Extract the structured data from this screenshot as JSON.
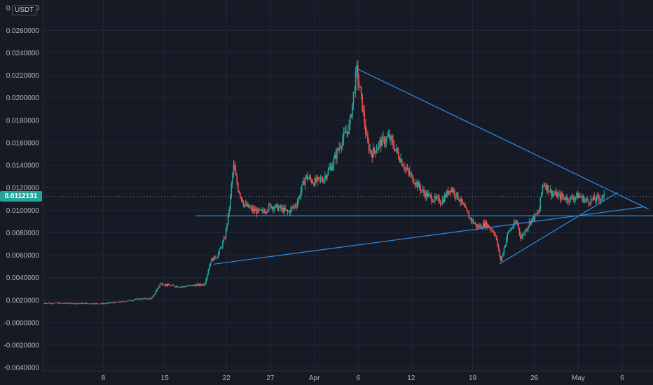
{
  "currency_label": "USDT",
  "last_price_label": "0.0112131",
  "colors": {
    "background": "#161a25",
    "grid": "#232736",
    "up": "#26a69a",
    "down": "#ef5350",
    "trendline": "#2e8de8",
    "price_line": "#7b808d"
  },
  "chart_data": {
    "type": "candlestick",
    "title": "",
    "xlabel": "",
    "ylabel": "",
    "ylim": [
      -0.0043,
      0.0287
    ],
    "y_ticks": [
      "0.0280000",
      "0.0260000",
      "0.0240000",
      "0.0220000",
      "0.0200000",
      "0.0180000",
      "0.0160000",
      "0.0140000",
      "0.0120000",
      "0.0100000",
      "0.0080000",
      "0.0060000",
      "0.0040000",
      "0.0020000",
      "-0.0000000",
      "-0.0020000",
      "-0.0040000"
    ],
    "y_tick_values": [
      0.028,
      0.026,
      0.024,
      0.022,
      0.02,
      0.018,
      0.016,
      0.014,
      0.012,
      0.01,
      0.008,
      0.006,
      0.004,
      0.002,
      0.0,
      -0.002,
      -0.004
    ],
    "x_ticks": [
      "8",
      "15",
      "22",
      "27",
      "Apr",
      "6",
      "12",
      "19",
      "26",
      "May",
      "6"
    ],
    "x_tick_days": [
      8,
      15,
      22,
      27,
      32,
      37,
      43,
      50,
      57,
      62,
      67
    ],
    "x_range_days": [
      1.2,
      70.5
    ],
    "last_price": 0.0112131,
    "price_path": [
      [
        1.2,
        0.00175
      ],
      [
        5,
        0.00172
      ],
      [
        8,
        0.0017
      ],
      [
        10,
        0.00185
      ],
      [
        12,
        0.0021
      ],
      [
        13.5,
        0.00215
      ],
      [
        14.5,
        0.0035
      ],
      [
        15.5,
        0.0033
      ],
      [
        17,
        0.0032
      ],
      [
        18,
        0.0033
      ],
      [
        19.5,
        0.0034
      ],
      [
        20.2,
        0.0055
      ],
      [
        21,
        0.006
      ],
      [
        21.8,
        0.0075
      ],
      [
        22.3,
        0.01
      ],
      [
        22.8,
        0.014
      ],
      [
        23.3,
        0.012
      ],
      [
        24,
        0.0105
      ],
      [
        25,
        0.01
      ],
      [
        26,
        0.0098
      ],
      [
        27,
        0.0104
      ],
      [
        28,
        0.0102
      ],
      [
        29,
        0.0098
      ],
      [
        30,
        0.0106
      ],
      [
        31,
        0.013
      ],
      [
        32,
        0.0125
      ],
      [
        33,
        0.0128
      ],
      [
        34,
        0.014
      ],
      [
        35,
        0.016
      ],
      [
        36,
        0.0175
      ],
      [
        36.8,
        0.0225
      ],
      [
        37.5,
        0.019
      ],
      [
        38,
        0.016
      ],
      [
        38.5,
        0.015
      ],
      [
        39.5,
        0.016
      ],
      [
        40.5,
        0.0165
      ],
      [
        41.5,
        0.015
      ],
      [
        42.5,
        0.0135
      ],
      [
        43.5,
        0.0125
      ],
      [
        44.5,
        0.0115
      ],
      [
        45.5,
        0.011
      ],
      [
        46.5,
        0.0108
      ],
      [
        47.5,
        0.012
      ],
      [
        48.5,
        0.011
      ],
      [
        49.5,
        0.0095
      ],
      [
        50.5,
        0.0085
      ],
      [
        51.5,
        0.0088
      ],
      [
        52.5,
        0.008
      ],
      [
        53.2,
        0.0055
      ],
      [
        54,
        0.008
      ],
      [
        55,
        0.009
      ],
      [
        55.5,
        0.0075
      ],
      [
        56.5,
        0.009
      ],
      [
        57.5,
        0.0098
      ],
      [
        58,
        0.0125
      ],
      [
        59,
        0.0115
      ],
      [
        60,
        0.0112
      ],
      [
        61,
        0.011
      ],
      [
        62,
        0.0113
      ],
      [
        63,
        0.0108
      ],
      [
        64,
        0.011
      ],
      [
        65,
        0.0112
      ]
    ],
    "annotations": [
      {
        "type": "trendline",
        "points": [
          [
            36.8,
            0.0226
          ],
          [
            70,
            0.0101
          ]
        ]
      },
      {
        "type": "horizontal_line",
        "from_day": 18.5,
        "to_day": 70.5,
        "value": 0.0095
      },
      {
        "type": "trendline",
        "points": [
          [
            20.5,
            0.0052
          ],
          [
            69.5,
            0.0103
          ]
        ]
      },
      {
        "type": "trendline",
        "points": [
          [
            53,
            0.0052
          ],
          [
            66.5,
            0.0116
          ]
        ]
      }
    ]
  }
}
